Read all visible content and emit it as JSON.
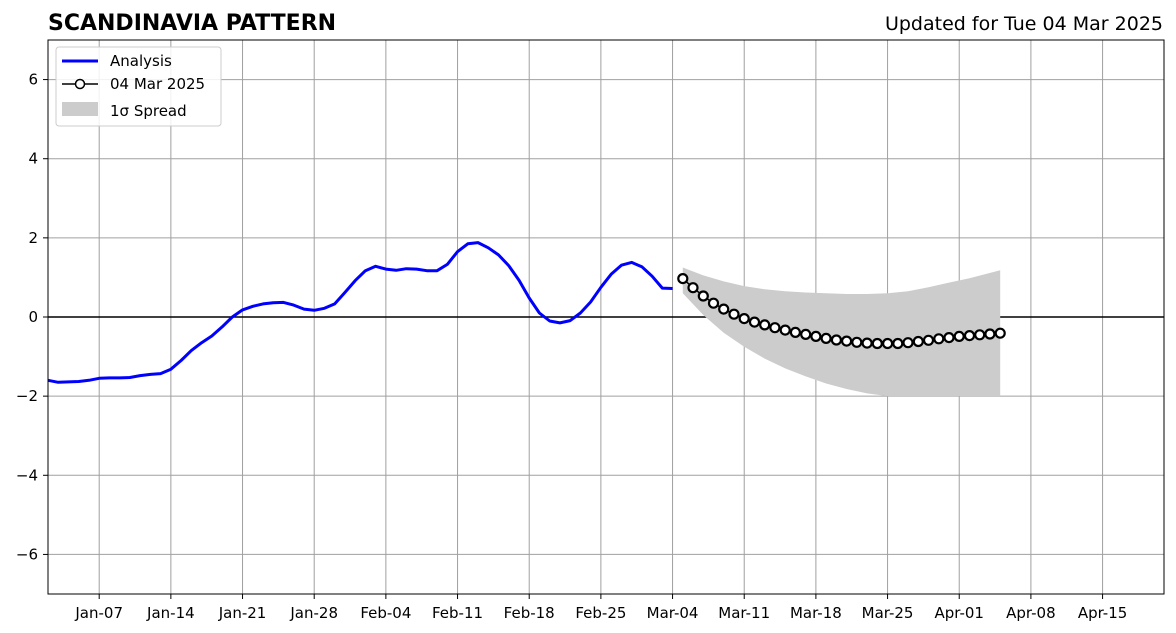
{
  "header": {
    "title": "SCANDINAVIA PATTERN",
    "updated": "Updated for Tue 04 Mar 2025"
  },
  "chart_data": {
    "type": "line",
    "title": "SCANDINAVIA PATTERN",
    "subtitle": "Updated for Tue 04 Mar 2025",
    "xlabel": "",
    "ylabel": "",
    "x_axis_type": "date",
    "xlim": [
      "2025-01-02",
      "2025-04-21"
    ],
    "ylim": [
      -7,
      7
    ],
    "grid": true,
    "zero_line": true,
    "legend_position": "top-left",
    "x_tick_labels": [
      {
        "date": "2025-01-07",
        "label": "Jan-07"
      },
      {
        "date": "2025-01-14",
        "label": "Jan-14"
      },
      {
        "date": "2025-01-21",
        "label": "Jan-21"
      },
      {
        "date": "2025-01-28",
        "label": "Jan-28"
      },
      {
        "date": "2025-02-04",
        "label": "Feb-04"
      },
      {
        "date": "2025-02-11",
        "label": "Feb-11"
      },
      {
        "date": "2025-02-18",
        "label": "Feb-18"
      },
      {
        "date": "2025-02-25",
        "label": "Feb-25"
      },
      {
        "date": "2025-03-04",
        "label": "Mar-04"
      },
      {
        "date": "2025-03-11",
        "label": "Mar-11"
      },
      {
        "date": "2025-03-18",
        "label": "Mar-18"
      },
      {
        "date": "2025-03-25",
        "label": "Mar-25"
      },
      {
        "date": "2025-04-01",
        "label": "Apr-01"
      },
      {
        "date": "2025-04-08",
        "label": "Apr-08"
      },
      {
        "date": "2025-04-15",
        "label": "Apr-15"
      }
    ],
    "y_ticks": [
      -6,
      -4,
      -2,
      0,
      2,
      4,
      6
    ],
    "y_tick_labels": [
      "−6",
      "−4",
      "−2",
      "0",
      "2",
      "4",
      "6"
    ],
    "series": [
      {
        "name": "Analysis",
        "color": "#0000ff",
        "style": "line",
        "x": [
          "2025-01-02",
          "2025-01-03",
          "2025-01-04",
          "2025-01-05",
          "2025-01-06",
          "2025-01-07",
          "2025-01-08",
          "2025-01-09",
          "2025-01-10",
          "2025-01-11",
          "2025-01-12",
          "2025-01-13",
          "2025-01-14",
          "2025-01-15",
          "2025-01-16",
          "2025-01-17",
          "2025-01-18",
          "2025-01-19",
          "2025-01-20",
          "2025-01-21",
          "2025-01-22",
          "2025-01-23",
          "2025-01-24",
          "2025-01-25",
          "2025-01-26",
          "2025-01-27",
          "2025-01-28",
          "2025-01-29",
          "2025-01-30",
          "2025-01-31",
          "2025-02-01",
          "2025-02-02",
          "2025-02-03",
          "2025-02-04",
          "2025-02-05",
          "2025-02-06",
          "2025-02-07",
          "2025-02-08",
          "2025-02-09",
          "2025-02-10",
          "2025-02-11",
          "2025-02-12",
          "2025-02-13",
          "2025-02-14",
          "2025-02-15",
          "2025-02-16",
          "2025-02-17",
          "2025-02-18",
          "2025-02-19",
          "2025-02-20",
          "2025-02-21",
          "2025-02-22",
          "2025-02-23",
          "2025-02-24",
          "2025-02-25",
          "2025-02-26",
          "2025-02-27",
          "2025-02-28",
          "2025-03-01",
          "2025-03-02",
          "2025-03-03",
          "2025-03-04"
        ],
        "y": [
          -1.6,
          -1.65,
          -1.64,
          -1.63,
          -1.6,
          -1.55,
          -1.54,
          -1.54,
          -1.53,
          -1.48,
          -1.45,
          -1.43,
          -1.32,
          -1.1,
          -0.85,
          -0.65,
          -0.48,
          -0.25,
          0.0,
          0.18,
          0.27,
          0.33,
          0.36,
          0.37,
          0.3,
          0.2,
          0.17,
          0.22,
          0.33,
          0.62,
          0.92,
          1.17,
          1.28,
          1.21,
          1.18,
          1.22,
          1.21,
          1.17,
          1.17,
          1.33,
          1.65,
          1.85,
          1.88,
          1.75,
          1.57,
          1.3,
          0.93,
          0.48,
          0.1,
          -0.1,
          -0.15,
          -0.09,
          0.1,
          0.38,
          0.75,
          1.08,
          1.31,
          1.38,
          1.27,
          1.03,
          0.73,
          0.72
        ]
      },
      {
        "name": "04 Mar 2025",
        "color": "#000000",
        "style": "line-with-open-circle-markers",
        "x": [
          "2025-03-05",
          "2025-03-06",
          "2025-03-07",
          "2025-03-08",
          "2025-03-09",
          "2025-03-10",
          "2025-03-11",
          "2025-03-12",
          "2025-03-13",
          "2025-03-14",
          "2025-03-15",
          "2025-03-16",
          "2025-03-17",
          "2025-03-18",
          "2025-03-19",
          "2025-03-20",
          "2025-03-21",
          "2025-03-22",
          "2025-03-23",
          "2025-03-24",
          "2025-03-25",
          "2025-03-26",
          "2025-03-27",
          "2025-03-28",
          "2025-03-29",
          "2025-03-30",
          "2025-03-31",
          "2025-04-01",
          "2025-04-02",
          "2025-04-03",
          "2025-04-04",
          "2025-04-05"
        ],
        "y": [
          0.97,
          0.74,
          0.53,
          0.35,
          0.2,
          0.07,
          -0.04,
          -0.13,
          -0.2,
          -0.27,
          -0.33,
          -0.39,
          -0.44,
          -0.49,
          -0.54,
          -0.58,
          -0.61,
          -0.64,
          -0.66,
          -0.67,
          -0.67,
          -0.67,
          -0.65,
          -0.62,
          -0.59,
          -0.55,
          -0.52,
          -0.49,
          -0.47,
          -0.45,
          -0.43,
          -0.41
        ]
      }
    ],
    "band": {
      "name": "1σ Spread",
      "color": "#cccccc",
      "x": [
        "2025-03-05",
        "2025-03-07",
        "2025-03-09",
        "2025-03-11",
        "2025-03-13",
        "2025-03-15",
        "2025-03-17",
        "2025-03-19",
        "2025-03-21",
        "2025-03-23",
        "2025-03-25",
        "2025-03-27",
        "2025-03-29",
        "2025-03-31",
        "2025-04-02",
        "2025-04-05"
      ],
      "upper": [
        1.25,
        1.05,
        0.9,
        0.78,
        0.7,
        0.65,
        0.62,
        0.6,
        0.58,
        0.58,
        0.6,
        0.65,
        0.75,
        0.87,
        0.98,
        1.18
      ],
      "lower": [
        0.6,
        0.05,
        -0.4,
        -0.75,
        -1.05,
        -1.3,
        -1.5,
        -1.68,
        -1.82,
        -1.93,
        -2.0,
        -2.0,
        -2.0,
        -2.0,
        -2.0,
        -2.0
      ]
    },
    "legend": [
      {
        "label": "Analysis",
        "kind": "line",
        "color": "#0000ff"
      },
      {
        "label": "04 Mar 2025",
        "kind": "line-marker",
        "color": "#000000"
      },
      {
        "label": "1σ Spread",
        "kind": "patch",
        "color": "#cccccc"
      }
    ]
  }
}
